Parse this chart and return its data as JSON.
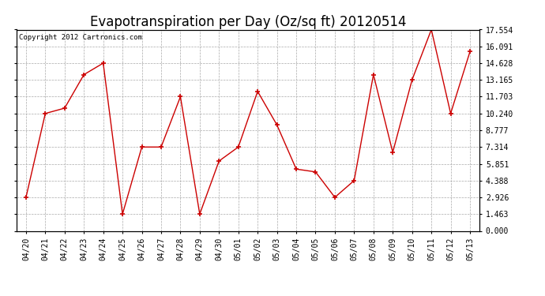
{
  "title": "Evapotranspiration per Day (Oz/sq ft) 20120514",
  "copyright": "Copyright 2012 Cartronics.com",
  "x_labels": [
    "04/20",
    "04/21",
    "04/22",
    "04/23",
    "04/24",
    "04/25",
    "04/26",
    "04/27",
    "04/28",
    "04/29",
    "04/30",
    "05/01",
    "05/02",
    "05/03",
    "05/04",
    "05/05",
    "05/06",
    "05/07",
    "05/08",
    "05/09",
    "05/10",
    "05/11",
    "05/12",
    "05/13"
  ],
  "y_values": [
    2.926,
    10.24,
    10.703,
    13.628,
    14.628,
    1.463,
    7.314,
    7.314,
    11.703,
    1.463,
    6.094,
    7.314,
    12.165,
    9.24,
    5.388,
    5.145,
    2.926,
    4.388,
    13.628,
    6.851,
    13.165,
    17.554,
    10.24,
    15.628
  ],
  "line_color": "#cc0000",
  "marker": "+",
  "marker_color": "#cc0000",
  "bg_color": "#ffffff",
  "grid_color": "#aaaaaa",
  "y_ticks": [
    0.0,
    1.463,
    2.926,
    4.388,
    5.851,
    7.314,
    8.777,
    10.24,
    11.703,
    13.165,
    14.628,
    16.091,
    17.554
  ],
  "ylim": [
    0,
    17.554
  ],
  "title_fontsize": 12,
  "tick_fontsize": 7,
  "copyright_fontsize": 6.5
}
